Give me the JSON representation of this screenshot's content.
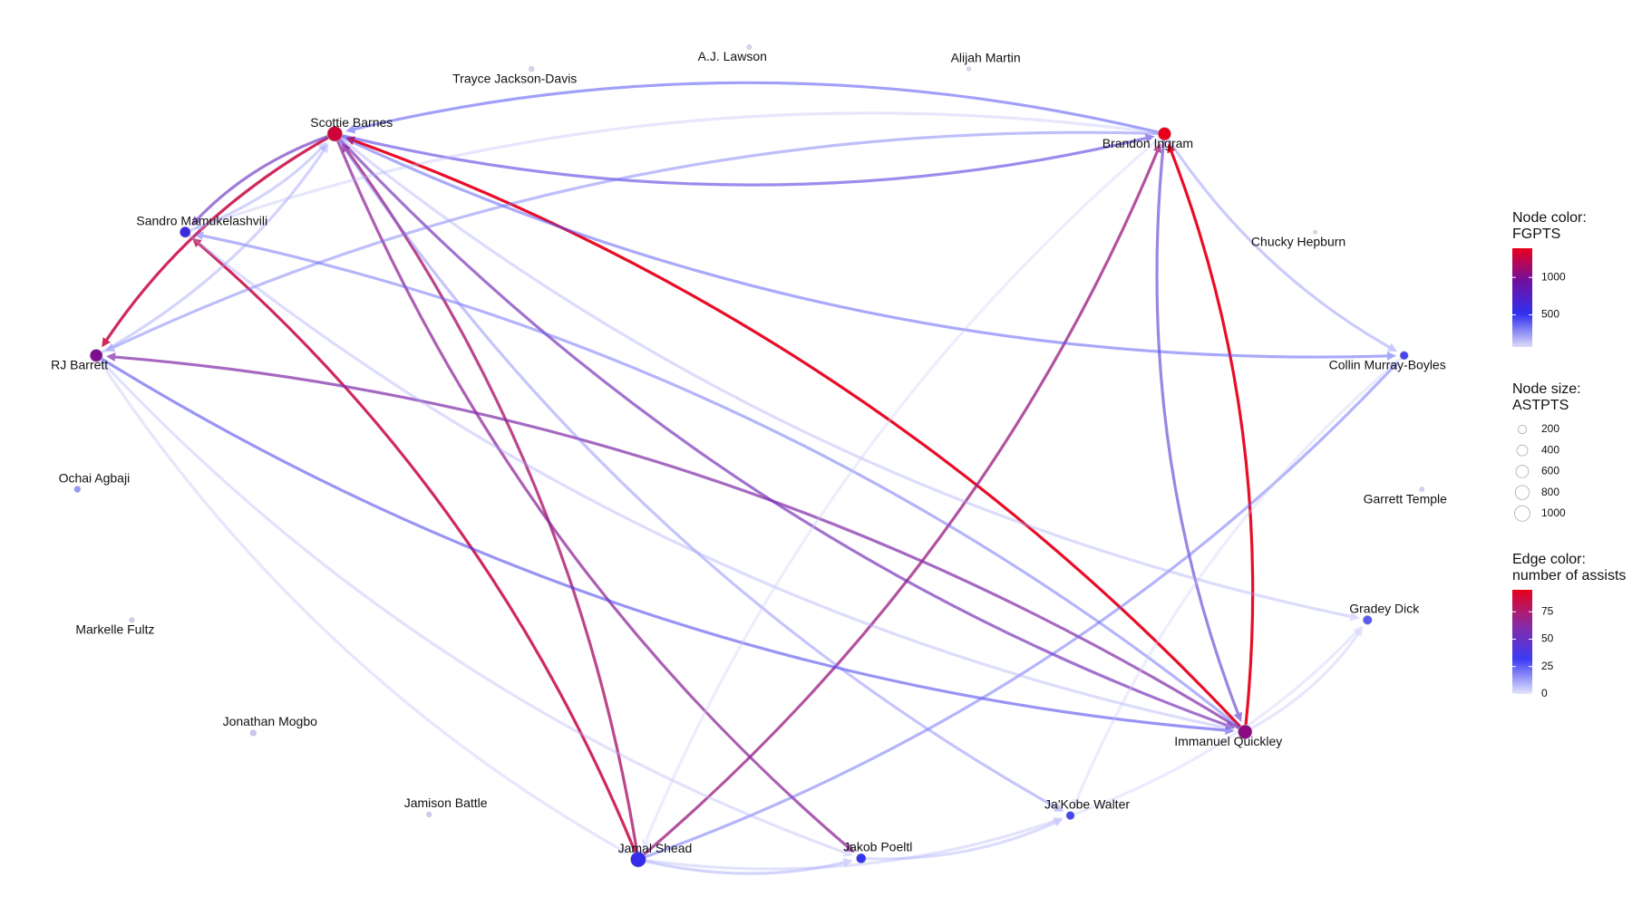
{
  "chart_data": {
    "type": "network",
    "nodes": [
      {
        "name": "Scottie Barnes",
        "fgpts": 1300,
        "astpts": 950
      },
      {
        "name": "Brandon Ingram",
        "fgpts": 1390,
        "astpts": 650
      },
      {
        "name": "Sandro Mamukelashvili",
        "fgpts": 600,
        "astpts": 400
      },
      {
        "name": "RJ Barrett",
        "fgpts": 1000,
        "astpts": 600
      },
      {
        "name": "Ochai Agbaji",
        "fgpts": 250,
        "astpts": 80
      },
      {
        "name": "Markelle Fultz",
        "fgpts": 100,
        "astpts": 30
      },
      {
        "name": "Jonathan Mogbo",
        "fgpts": 120,
        "astpts": 60
      },
      {
        "name": "Jamison Battle",
        "fgpts": 110,
        "astpts": 30
      },
      {
        "name": "Jamal Shead",
        "fgpts": 550,
        "astpts": 1000
      },
      {
        "name": "Jakob Poeltl",
        "fgpts": 500,
        "astpts": 300
      },
      {
        "name": "Ja'Kobe Walter",
        "fgpts": 450,
        "astpts": 200
      },
      {
        "name": "Immanuel Quickley",
        "fgpts": 1050,
        "astpts": 800
      },
      {
        "name": "Gradey Dick",
        "fgpts": 400,
        "astpts": 250
      },
      {
        "name": "Garrett Temple",
        "fgpts": 90,
        "astpts": 20
      },
      {
        "name": "Collin Murray-Boyles",
        "fgpts": 450,
        "astpts": 200
      },
      {
        "name": "Chucky Hepburn",
        "fgpts": 80,
        "astpts": 5
      },
      {
        "name": "Alijah Martin",
        "fgpts": 80,
        "astpts": 10
      },
      {
        "name": "A.J. Lawson",
        "fgpts": 90,
        "astpts": 20
      },
      {
        "name": "Trayce Jackson-Davis",
        "fgpts": 90,
        "astpts": 30
      }
    ],
    "edges": [
      {
        "source": 11,
        "target": 0,
        "assists": 95
      },
      {
        "source": 11,
        "target": 1,
        "assists": 95
      },
      {
        "source": 0,
        "target": 3,
        "assists": 85
      },
      {
        "source": 8,
        "target": 2,
        "assists": 85
      },
      {
        "source": 8,
        "target": 0,
        "assists": 75
      },
      {
        "source": 8,
        "target": 1,
        "assists": 70
      },
      {
        "source": 0,
        "target": 9,
        "assists": 65
      },
      {
        "source": 11,
        "target": 3,
        "assists": 60
      },
      {
        "source": 0,
        "target": 11,
        "assists": 55
      },
      {
        "source": 1,
        "target": 11,
        "assists": 45
      },
      {
        "source": 0,
        "target": 2,
        "assists": 50
      },
      {
        "source": 0,
        "target": 1,
        "assists": 40
      },
      {
        "source": 1,
        "target": 0,
        "assists": 30
      },
      {
        "source": 3,
        "target": 11,
        "assists": 35
      },
      {
        "source": 8,
        "target": 14,
        "assists": 25
      },
      {
        "source": 0,
        "target": 14,
        "assists": 28
      },
      {
        "source": 1,
        "target": 3,
        "assists": 22
      },
      {
        "source": 11,
        "target": 2,
        "assists": 25
      },
      {
        "source": 1,
        "target": 14,
        "assists": 18
      },
      {
        "source": 2,
        "target": 0,
        "assists": 15
      },
      {
        "source": 3,
        "target": 0,
        "assists": 15
      },
      {
        "source": 8,
        "target": 9,
        "assists": 15
      },
      {
        "source": 9,
        "target": 10,
        "assists": 12
      },
      {
        "source": 0,
        "target": 10,
        "assists": 20
      },
      {
        "source": 0,
        "target": 12,
        "assists": 12
      },
      {
        "source": 11,
        "target": 12,
        "assists": 8
      },
      {
        "source": 3,
        "target": 9,
        "assists": 10
      },
      {
        "source": 2,
        "target": 11,
        "assists": 12
      },
      {
        "source": 1,
        "target": 2,
        "assists": 8
      },
      {
        "source": 8,
        "target": 10,
        "assists": 10
      },
      {
        "source": 10,
        "target": 12,
        "assists": 6
      },
      {
        "source": 3,
        "target": 8,
        "assists": 8
      },
      {
        "source": 1,
        "target": 8,
        "assists": 5
      },
      {
        "source": 14,
        "target": 10,
        "assists": 5
      }
    ],
    "node_color_legend": {
      "title": [
        "Node color:",
        "FGPTS"
      ],
      "lim": [
        70,
        1390
      ],
      "ticks": [
        500,
        1000
      ],
      "colors": [
        "#dcdcf8",
        "#3030f0",
        "#7010a0",
        "#e8001c"
      ]
    },
    "node_size_legend": {
      "title": [
        "Node size:",
        "ASTPTS"
      ],
      "lim": [
        0,
        1000
      ],
      "ticks": [
        200,
        400,
        600,
        800,
        1000
      ]
    },
    "edge_color_legend": {
      "title": [
        "Edge color:",
        "number of assists"
      ],
      "lim": [
        0,
        95
      ],
      "ticks": [
        0,
        25,
        50,
        75
      ],
      "colors": [
        "#e4e4fb",
        "#3b3bf5",
        "#8a2aa0",
        "#e8001c"
      ]
    }
  }
}
